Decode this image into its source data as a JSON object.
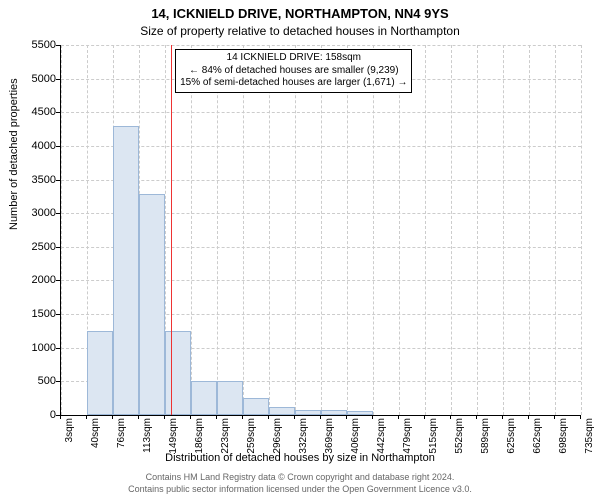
{
  "chart": {
    "type": "histogram",
    "title_line1": "14, ICKNIELD DRIVE, NORTHAMPTON, NN4 9YS",
    "title_line2": "Size of property relative to detached houses in Northampton",
    "x_axis_label": "Distribution of detached houses by size in Northampton",
    "y_axis_label": "Number of detached properties",
    "background_color": "#ffffff",
    "grid_color": "#cccccc",
    "bar_fill_color": "#dce6f2",
    "bar_border_color": "#9db8d8",
    "ref_line_color": "#ee3333",
    "text_color": "#000000",
    "footer_color": "#666666",
    "title_fontsize": 13,
    "subtitle_fontsize": 12,
    "axis_label_fontsize": 11,
    "tick_fontsize": 10,
    "annotation_fontsize": 10,
    "footer_fontsize": 9,
    "xlim": [
      3,
      735
    ],
    "ylim": [
      0,
      5500
    ],
    "y_ticks": [
      0,
      500,
      1000,
      1500,
      2000,
      2500,
      3000,
      3500,
      4000,
      4500,
      5000,
      5500
    ],
    "x_ticks": [
      3,
      40,
      76,
      113,
      149,
      186,
      223,
      259,
      296,
      332,
      369,
      406,
      442,
      479,
      515,
      552,
      589,
      625,
      662,
      698,
      735
    ],
    "x_tick_labels": [
      "3sqm",
      "40sqm",
      "76sqm",
      "113sqm",
      "149sqm",
      "186sqm",
      "223sqm",
      "259sqm",
      "296sqm",
      "332sqm",
      "369sqm",
      "406sqm",
      "442sqm",
      "479sqm",
      "515sqm",
      "552sqm",
      "589sqm",
      "625sqm",
      "662sqm",
      "698sqm",
      "735sqm"
    ],
    "bars": [
      {
        "x0": 3,
        "x1": 40,
        "value": 0
      },
      {
        "x0": 40,
        "x1": 76,
        "value": 1250
      },
      {
        "x0": 76,
        "x1": 113,
        "value": 4300
      },
      {
        "x0": 113,
        "x1": 149,
        "value": 3280
      },
      {
        "x0": 149,
        "x1": 186,
        "value": 1250
      },
      {
        "x0": 186,
        "x1": 223,
        "value": 500
      },
      {
        "x0": 223,
        "x1": 259,
        "value": 500
      },
      {
        "x0": 259,
        "x1": 296,
        "value": 250
      },
      {
        "x0": 296,
        "x1": 332,
        "value": 120
      },
      {
        "x0": 332,
        "x1": 369,
        "value": 80
      },
      {
        "x0": 369,
        "x1": 406,
        "value": 70
      },
      {
        "x0": 406,
        "x1": 442,
        "value": 60
      },
      {
        "x0": 442,
        "x1": 479,
        "value": 0
      },
      {
        "x0": 479,
        "x1": 515,
        "value": 0
      },
      {
        "x0": 515,
        "x1": 552,
        "value": 0
      },
      {
        "x0": 552,
        "x1": 589,
        "value": 0
      },
      {
        "x0": 589,
        "x1": 625,
        "value": 0
      },
      {
        "x0": 625,
        "x1": 662,
        "value": 0
      },
      {
        "x0": 662,
        "x1": 698,
        "value": 0
      },
      {
        "x0": 698,
        "x1": 735,
        "value": 0
      }
    ],
    "reference_line_x": 158,
    "annotation": {
      "line1": "14 ICKNIELD DRIVE: 158sqm",
      "line2": "← 84% of detached houses are smaller (9,239)",
      "line3": "15% of semi-detached houses are larger (1,671) →"
    },
    "footer_line1": "Contains HM Land Registry data © Crown copyright and database right 2024.",
    "footer_line2": "Contains public sector information licensed under the Open Government Licence v3.0."
  }
}
